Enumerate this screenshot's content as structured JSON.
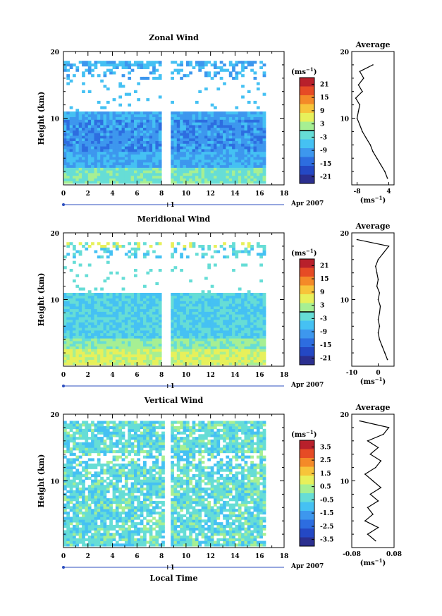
{
  "figure": {
    "month_label": "Apr 2007",
    "day_label": "1",
    "xlabel": "Local Time",
    "ylabel": "Height (km)",
    "unit_label": "(ms",
    "unit_exp": "−1",
    "avg_title": "Average"
  },
  "colors": {
    "palette": [
      "#2b2f8f",
      "#2448c4",
      "#2d6de0",
      "#3d97ee",
      "#45c1f3",
      "#66ddd6",
      "#a6ef93",
      "#e7f05b",
      "#f7c43a",
      "#f48a28",
      "#e64b25",
      "#b8202b"
    ],
    "background": "#ffffff",
    "frame": "#000000"
  },
  "chart_data": [
    {
      "type": "heatmap",
      "title": "Zonal Wind",
      "xlabel": "Local Time",
      "ylabel": "Height (km)",
      "xlim": [
        0,
        18
      ],
      "ylim": [
        0,
        20
      ],
      "x_ticks": [
        "0",
        "2",
        "4",
        "6",
        "8",
        "10",
        "12",
        "14",
        "16",
        "18"
      ],
      "y_ticks": [
        "20",
        "10"
      ],
      "colorbar": {
        "ticks": [
          "21",
          "15",
          "9",
          "3",
          "-3",
          "-9",
          "-15",
          "-21"
        ],
        "range": [
          -24,
          24
        ],
        "zero_line": 0
      },
      "profile": {
        "title": "Average",
        "xlabel": "(ms−1)",
        "x_ticks": [
          "-8",
          "4"
        ],
        "xlim": [
          -10,
          6
        ],
        "heights": [
          1,
          2,
          3,
          4,
          5,
          6,
          7,
          8,
          9,
          10,
          11,
          12,
          13,
          14,
          15,
          16,
          17,
          18
        ],
        "values": [
          3.5,
          2.5,
          1.0,
          -0.5,
          -2,
          -3,
          -4.5,
          -6,
          -7,
          -8,
          -7.5,
          -7,
          -8.5,
          -6,
          -7.5,
          -5.5,
          -7,
          -2
        ]
      }
    },
    {
      "type": "heatmap",
      "title": "Meridional Wind",
      "xlabel": "Local Time",
      "ylabel": "Height (km)",
      "xlim": [
        0,
        18
      ],
      "ylim": [
        0,
        20
      ],
      "x_ticks": [
        "0",
        "2",
        "4",
        "6",
        "8",
        "10",
        "12",
        "14",
        "16",
        "18"
      ],
      "y_ticks": [
        "20",
        "10"
      ],
      "colorbar": {
        "ticks": [
          "21",
          "15",
          "9",
          "3",
          "-3",
          "-9",
          "-15",
          "-21"
        ],
        "range": [
          -24,
          24
        ],
        "zero_line": 0
      },
      "profile": {
        "title": "Average",
        "xlabel": "(ms−1)",
        "x_ticks": [
          "-10",
          "0"
        ],
        "xlim": [
          -10,
          6
        ],
        "heights": [
          1,
          2,
          3,
          4,
          5,
          6,
          7,
          8,
          9,
          10,
          11,
          12,
          13,
          14,
          15,
          16,
          17,
          18,
          19
        ],
        "values": [
          3.5,
          2.5,
          1.5,
          0.5,
          0,
          0.5,
          0,
          0.5,
          0.8,
          0,
          0.5,
          -0.5,
          0,
          -0.5,
          -1,
          0,
          2,
          4,
          -8
        ]
      }
    },
    {
      "type": "heatmap",
      "title": "Vertical Wind",
      "xlabel": "Local Time",
      "ylabel": "Height (km)",
      "xlim": [
        0,
        18
      ],
      "ylim": [
        0,
        20
      ],
      "x_ticks": [
        "0",
        "2",
        "4",
        "6",
        "8",
        "10",
        "12",
        "14",
        "16",
        "18"
      ],
      "y_ticks": [
        "20",
        "10"
      ],
      "colorbar": {
        "ticks": [
          "3.5",
          "2.5",
          "1.5",
          "0.5",
          "-0.5",
          "-1.5",
          "-2.5",
          "-3.5"
        ],
        "range": [
          -4,
          4
        ],
        "zero_line": null
      },
      "profile": {
        "title": "Average",
        "xlabel": "(ms−1)",
        "x_ticks": [
          "-0.08",
          "0.08"
        ],
        "xlim": [
          -0.08,
          0.08
        ],
        "heights": [
          1,
          2,
          3,
          4,
          5,
          6,
          7,
          8,
          9,
          10,
          11,
          12,
          13,
          14,
          15,
          16,
          17,
          18,
          19
        ],
        "values": [
          0.01,
          -0.02,
          0.02,
          -0.03,
          0.0,
          -0.02,
          0.02,
          -0.01,
          0.03,
          0.0,
          -0.03,
          0.01,
          0.03,
          -0.01,
          0.02,
          -0.02,
          0.04,
          0.06,
          -0.05
        ]
      }
    }
  ]
}
